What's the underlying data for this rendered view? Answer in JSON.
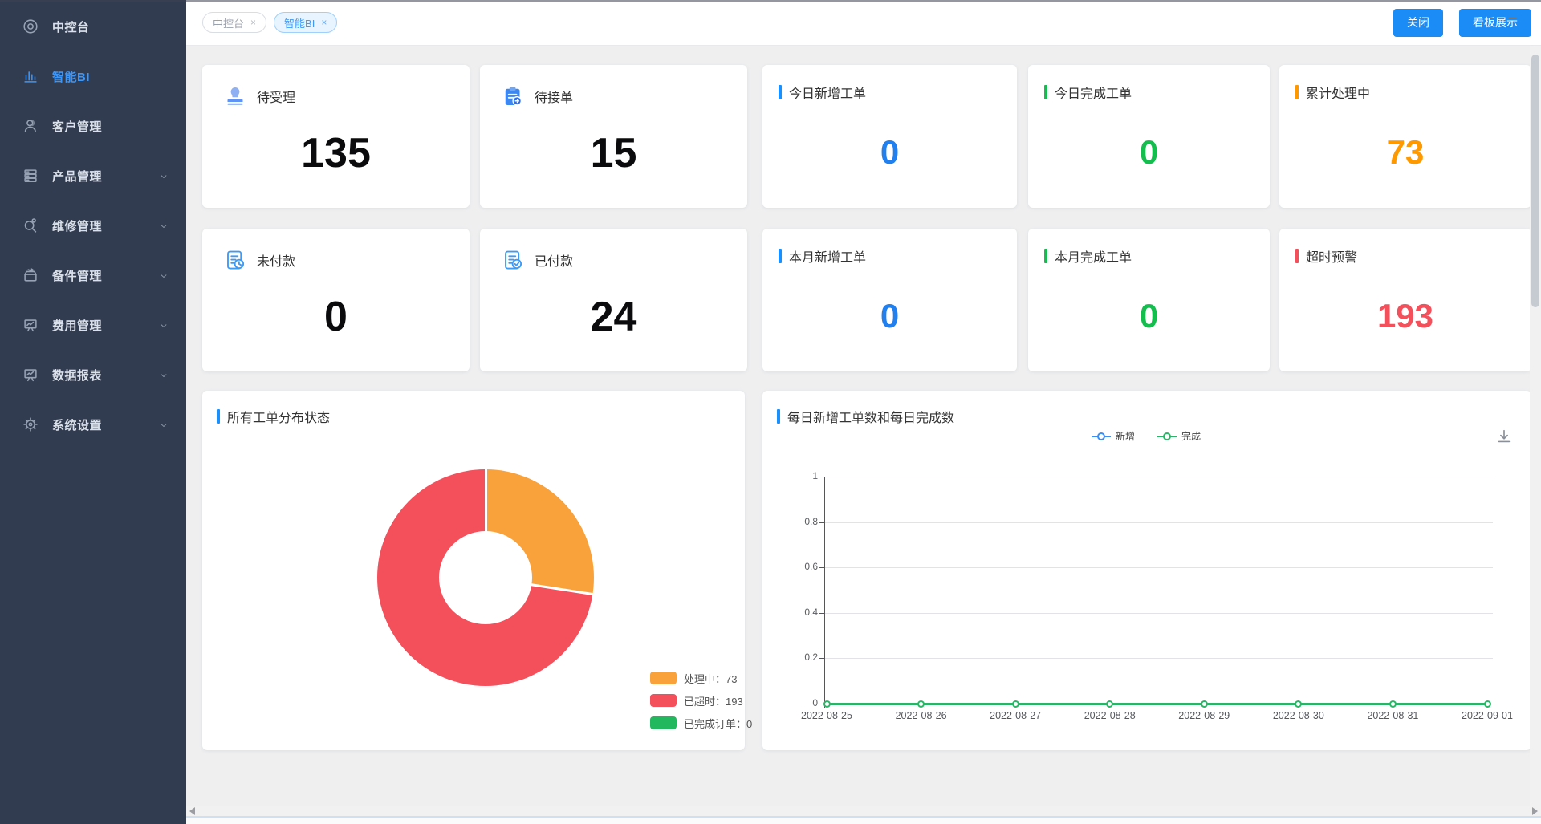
{
  "app": {
    "accent_blue": "#1890ff",
    "accent_green": "#15bd4f",
    "accent_orange": "#ff9900",
    "accent_red": "#f4505c"
  },
  "sidebar": {
    "items": [
      {
        "key": "console",
        "label": "中控台",
        "icon": "dashboard-icon",
        "active": false,
        "has_chevron": false
      },
      {
        "key": "smart-bi",
        "label": "智能BI",
        "icon": "bar-chart-icon",
        "active": true,
        "has_chevron": false
      },
      {
        "key": "customer-management",
        "label": "客户管理",
        "icon": "users-icon",
        "active": false,
        "has_chevron": false
      },
      {
        "key": "product-management",
        "label": "产品管理",
        "icon": "server-icon",
        "active": false,
        "has_chevron": true
      },
      {
        "key": "repair-management",
        "label": "维修管理",
        "icon": "magnifier-gear-icon",
        "active": false,
        "has_chevron": true
      },
      {
        "key": "parts-management",
        "label": "备件管理",
        "icon": "toolbox-icon",
        "active": false,
        "has_chevron": true
      },
      {
        "key": "fee-management",
        "label": "费用管理",
        "icon": "easel-chart-icon",
        "active": false,
        "has_chevron": true
      },
      {
        "key": "data-reports",
        "label": "数据报表",
        "icon": "easel-chart-icon",
        "active": false,
        "has_chevron": true
      },
      {
        "key": "system-settings",
        "label": "系统设置",
        "icon": "gear-icon",
        "active": false,
        "has_chevron": true
      }
    ]
  },
  "topbar": {
    "tabs": [
      {
        "label": "中控台",
        "close": "×",
        "active": false
      },
      {
        "label": "智能BI",
        "close": "×",
        "active": true
      }
    ],
    "close_button": "关闭",
    "board_button": "看板展示"
  },
  "stat_cards": {
    "row1": [
      {
        "type": "icon",
        "icon": "stamp-icon",
        "title": "待受理",
        "value": "135"
      },
      {
        "type": "icon",
        "icon": "clipboard-icon",
        "title": "待接单",
        "value": "15"
      },
      {
        "type": "bar",
        "accent": "#1890ff",
        "value_color": "#2080f0",
        "title": "今日新增工单",
        "value": "0"
      },
      {
        "type": "bar",
        "accent": "#15bd4f",
        "value_color": "#15bd4f",
        "title": "今日完成工单",
        "value": "0"
      },
      {
        "type": "bar",
        "accent": "#ff9900",
        "value_color": "#ff9900",
        "title": "累计处理中",
        "value": "73"
      }
    ],
    "row2": [
      {
        "type": "icon",
        "icon": "doc-clock-icon",
        "title": "未付款",
        "value": "0"
      },
      {
        "type": "icon",
        "icon": "doc-check-icon",
        "title": "已付款",
        "value": "24"
      },
      {
        "type": "bar",
        "accent": "#1890ff",
        "value_color": "#2080f0",
        "title": "本月新增工单",
        "value": "0"
      },
      {
        "type": "bar",
        "accent": "#15bd4f",
        "value_color": "#15bd4f",
        "title": "本月完成工单",
        "value": "0"
      },
      {
        "type": "bar",
        "accent": "#f4505c",
        "value_color": "#f4505c",
        "title": "超时预警",
        "value": "193"
      }
    ]
  },
  "chart_data": [
    {
      "type": "pie",
      "title": "所有工单分布状态",
      "slices": [
        {
          "label": "处理中",
          "value": 73,
          "color": "#f9a23c"
        },
        {
          "label": "已超时",
          "value": 193,
          "color": "#f4505c"
        },
        {
          "label": "已完成订单",
          "value": 0,
          "color": "#21b85e"
        }
      ],
      "legend_labels": [
        "处理中：73",
        "已超时：193",
        "已完成订单：0"
      ],
      "legend_position": "bottom-right",
      "inner_radius_ratio": 0.43,
      "start_angle_deg": 0
    },
    {
      "type": "line",
      "title": "每日新增工单数和每日完成数",
      "x": [
        "2022-08-25",
        "2022-08-26",
        "2022-08-27",
        "2022-08-28",
        "2022-08-29",
        "2022-08-30",
        "2022-08-31",
        "2022-09-01"
      ],
      "series": [
        {
          "name": "新增",
          "color": "#3e8ef0",
          "values": [
            0,
            0,
            0,
            0,
            0,
            0,
            0,
            0
          ]
        },
        {
          "name": "完成",
          "color": "#2bb467",
          "values": [
            0,
            0,
            0,
            0,
            0,
            0,
            0,
            0
          ]
        }
      ],
      "ylim": [
        0,
        1
      ],
      "yticks": [
        0,
        0.2,
        0.4,
        0.6,
        0.8,
        1
      ],
      "grid": true,
      "legend_position": "top"
    }
  ]
}
